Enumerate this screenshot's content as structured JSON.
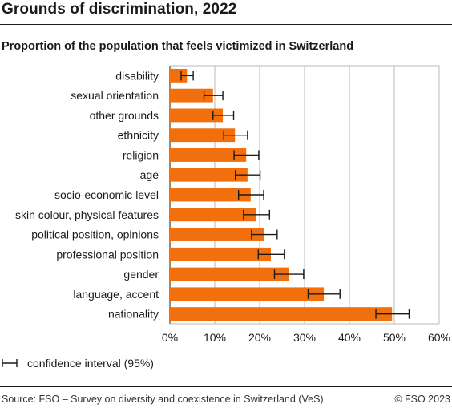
{
  "header": {
    "title": "Grounds of discrimination, 2022"
  },
  "chart_data": {
    "type": "bar",
    "orientation": "horizontal",
    "title": "Proportion of the population that feels victimized in Switzerland",
    "categories": [
      "disability",
      "sexual orientation",
      "other grounds",
      "ethnicity",
      "religion",
      "age",
      "socio-economic level",
      "skin colour, physical features",
      "political position, opinions",
      "professional position",
      "gender",
      "language, accent",
      "nationality"
    ],
    "values": [
      3.8,
      9.6,
      11.8,
      14.5,
      17.0,
      17.3,
      18.0,
      19.2,
      21.0,
      22.5,
      26.5,
      34.3,
      49.5
    ],
    "ci_low": [
      2.5,
      7.6,
      9.6,
      12.0,
      14.3,
      14.6,
      15.3,
      16.4,
      18.2,
      19.7,
      23.3,
      30.8,
      45.9
    ],
    "ci_high": [
      5.2,
      11.8,
      14.2,
      17.3,
      19.8,
      20.1,
      20.9,
      22.2,
      23.9,
      25.5,
      29.8,
      37.9,
      53.3
    ],
    "xlim": [
      0,
      60
    ],
    "xticks": [
      0,
      10,
      20,
      30,
      40,
      50,
      60
    ],
    "xtick_labels": [
      "0%",
      "10%",
      "20%",
      "30%",
      "40%",
      "50%",
      "60%"
    ],
    "bar_color": "#F26F0E",
    "grid": true,
    "legend": "confidence interval (95%)"
  },
  "footer": {
    "source": "Source: FSO – Survey on diversity and coexistence in Switzerland (VeS)",
    "copyright": "© FSO 2023"
  }
}
